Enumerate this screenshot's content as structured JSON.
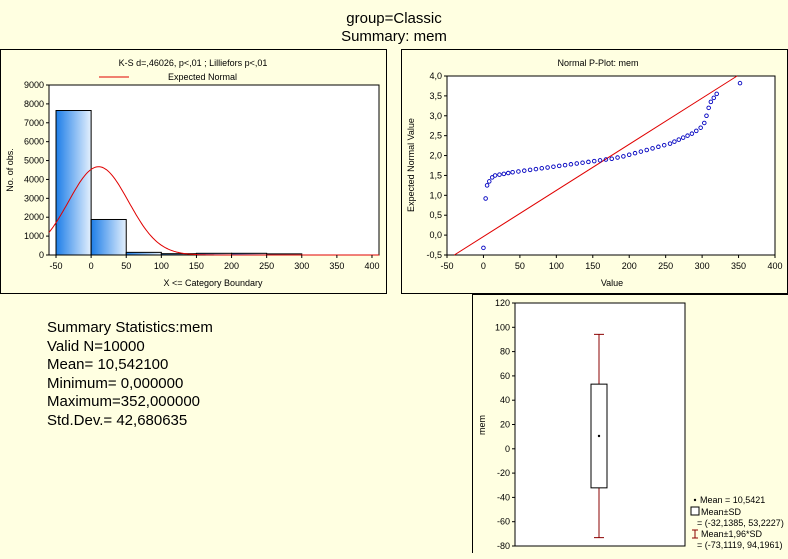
{
  "page": {
    "title_line1": "group=Classic",
    "title_line2": "Summary: mem"
  },
  "summary": {
    "header": "Summary Statistics:mem",
    "lines": [
      "Valid N=10000",
      "Mean= 10,542100",
      "Minimum=  0,000000",
      "Maximum=352,000000",
      "Std.Dev.= 42,680635"
    ]
  },
  "chart_data": [
    {
      "type": "bar",
      "title": "K-S d=,46026, p<,01 ; Lilliefors p<,01",
      "legend": "Expected Normal",
      "xlabel": "X <= Category Boundary",
      "ylabel": "No. of obs.",
      "xlim": [
        -60,
        410
      ],
      "ylim": [
        0,
        9000
      ],
      "x_ticks": [
        "-50",
        "0",
        "50",
        "100",
        "150",
        "200",
        "250",
        "300",
        "350",
        "400"
      ],
      "y_ticks": [
        "0",
        "1000",
        "2000",
        "3000",
        "4000",
        "5000",
        "6000",
        "7000",
        "8000",
        "9000"
      ],
      "bins": [
        {
          "from": -50,
          "to": 0,
          "count": 7650
        },
        {
          "from": 0,
          "to": 50,
          "count": 1880
        },
        {
          "from": 50,
          "to": 100,
          "count": 140
        },
        {
          "from": 100,
          "to": 150,
          "count": 70
        },
        {
          "from": 150,
          "to": 200,
          "count": 90
        },
        {
          "from": 200,
          "to": 250,
          "count": 90
        },
        {
          "from": 250,
          "to": 300,
          "count": 60
        }
      ],
      "normal": {
        "mean": 10.5421,
        "sd": 42.680635,
        "n": 10000,
        "bin_width": 50
      }
    },
    {
      "type": "scatter",
      "title": "Normal P-Plot: mem",
      "xlabel": "Value",
      "ylabel": "Expected Normal Value",
      "xlim": [
        -50,
        400
      ],
      "ylim": [
        -0.5,
        4.0
      ],
      "x_ticks": [
        "-50",
        "0",
        "50",
        "100",
        "150",
        "200",
        "250",
        "300",
        "350",
        "400"
      ],
      "y_ticks": [
        "-0,5",
        "0,0",
        "0,5",
        "1,0",
        "1,5",
        "2,0",
        "2,5",
        "3,0",
        "3,5",
        "4,0"
      ],
      "points": [
        [
          0,
          -0.32
        ],
        [
          3,
          0.92
        ],
        [
          5,
          1.25
        ],
        [
          8,
          1.35
        ],
        [
          12,
          1.45
        ],
        [
          16,
          1.5
        ],
        [
          22,
          1.52
        ],
        [
          28,
          1.54
        ],
        [
          34,
          1.56
        ],
        [
          40,
          1.58
        ],
        [
          48,
          1.6
        ],
        [
          56,
          1.62
        ],
        [
          64,
          1.64
        ],
        [
          72,
          1.66
        ],
        [
          80,
          1.68
        ],
        [
          88,
          1.7
        ],
        [
          96,
          1.72
        ],
        [
          104,
          1.74
        ],
        [
          112,
          1.76
        ],
        [
          120,
          1.78
        ],
        [
          128,
          1.8
        ],
        [
          136,
          1.82
        ],
        [
          144,
          1.84
        ],
        [
          152,
          1.86
        ],
        [
          160,
          1.88
        ],
        [
          168,
          1.9
        ],
        [
          176,
          1.92
        ],
        [
          184,
          1.95
        ],
        [
          192,
          1.98
        ],
        [
          200,
          2.02
        ],
        [
          208,
          2.06
        ],
        [
          216,
          2.1
        ],
        [
          224,
          2.14
        ],
        [
          232,
          2.18
        ],
        [
          240,
          2.22
        ],
        [
          248,
          2.26
        ],
        [
          256,
          2.3
        ],
        [
          262,
          2.35
        ],
        [
          268,
          2.4
        ],
        [
          274,
          2.45
        ],
        [
          280,
          2.5
        ],
        [
          286,
          2.55
        ],
        [
          292,
          2.62
        ],
        [
          298,
          2.7
        ],
        [
          303,
          2.82
        ],
        [
          306,
          3.0
        ],
        [
          309,
          3.2
        ],
        [
          312,
          3.35
        ],
        [
          316,
          3.45
        ],
        [
          320,
          3.55
        ],
        [
          352,
          3.82
        ]
      ],
      "reference_line": [
        [
          -40,
          -0.5
        ],
        [
          348,
          4.0
        ]
      ]
    },
    {
      "type": "box",
      "ylabel": "mem",
      "ylim": [
        -80,
        120
      ],
      "y_ticks": [
        "-80",
        "-60",
        "-40",
        "-20",
        "0",
        "20",
        "40",
        "60",
        "80",
        "100",
        "120"
      ],
      "mean": 10.5421,
      "box": [
        -32.1385,
        53.2227
      ],
      "whiskers": [
        -73.1119,
        94.1961
      ],
      "legend": [
        {
          "symbol": "point",
          "text": "Mean = 10,5421"
        },
        {
          "symbol": "box",
          "text": "Mean±SD",
          "text2": "= (-32,1385, 53,2227)"
        },
        {
          "symbol": "whisker",
          "text": "Mean±1,96*SD",
          "text2": "= (-73,1119, 94,1961)"
        }
      ]
    }
  ]
}
